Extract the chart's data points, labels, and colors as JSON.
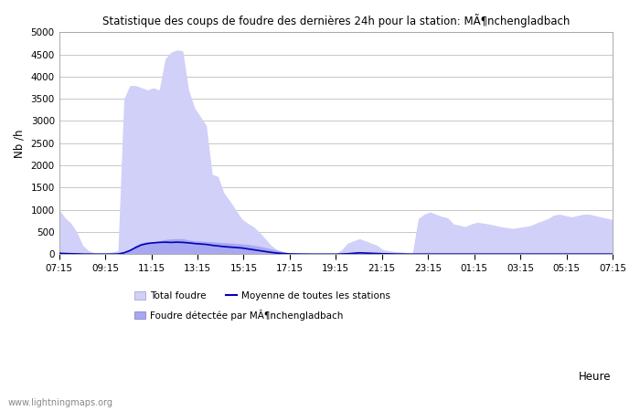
{
  "title": "Statistique des coups de foudre des dernières 24h pour la station: MÃ¶nchengladbach",
  "ylabel": "Nb /h",
  "xlabel": "Heure",
  "ylim": [
    0,
    5000
  ],
  "yticks": [
    0,
    500,
    1000,
    1500,
    2000,
    2500,
    3000,
    3500,
    4000,
    4500,
    5000
  ],
  "xtick_labels": [
    "07:15",
    "09:15",
    "11:15",
    "13:15",
    "15:15",
    "17:15",
    "19:15",
    "21:15",
    "23:15",
    "01:15",
    "03:15",
    "05:15",
    "07:15"
  ],
  "bg_color": "#ffffff",
  "plot_bg_color": "#ffffff",
  "grid_color": "#c8c8c8",
  "fill_total_color": "#d0d0f8",
  "fill_station_color": "#a8a8f0",
  "line_color": "#0000bb",
  "watermark": "www.lightningmaps.org",
  "total_foudre": [
    1000,
    820,
    700,
    500,
    200,
    80,
    30,
    20,
    30,
    50,
    80,
    3500,
    3800,
    3800,
    3750,
    3700,
    3750,
    3700,
    4400,
    4550,
    4600,
    4580,
    3700,
    3300,
    3100,
    2900,
    1800,
    1750,
    1380,
    1200,
    1000,
    800,
    700,
    620,
    500,
    350,
    200,
    100,
    50,
    20,
    10,
    5,
    3,
    2,
    2,
    2,
    2,
    2,
    100,
    250,
    300,
    350,
    300,
    250,
    200,
    100,
    80,
    60,
    50,
    30,
    20,
    800,
    900,
    950,
    900,
    850,
    820,
    680,
    650,
    620,
    680,
    720,
    700,
    680,
    650,
    620,
    600,
    580,
    600,
    620,
    640,
    700,
    750,
    800,
    880,
    900,
    870,
    840,
    870,
    900,
    900,
    870,
    840,
    810,
    780
  ],
  "station_foudre": [
    20,
    15,
    10,
    8,
    3,
    2,
    1,
    1,
    1,
    2,
    5,
    50,
    100,
    200,
    260,
    280,
    280,
    300,
    330,
    345,
    350,
    350,
    320,
    300,
    295,
    285,
    280,
    270,
    260,
    250,
    240,
    230,
    220,
    200,
    180,
    150,
    120,
    90,
    60,
    30,
    15,
    8,
    4,
    2,
    1,
    1,
    1,
    1,
    5,
    20,
    40,
    60,
    50,
    30,
    20,
    10,
    8,
    5,
    4,
    3,
    2,
    5,
    5,
    5,
    5,
    5,
    5,
    5,
    5,
    5,
    5,
    5,
    5,
    5,
    5,
    5,
    5,
    5,
    5,
    5,
    5,
    5,
    5,
    5,
    5,
    5,
    5,
    5,
    5,
    5,
    5,
    5,
    5,
    5,
    5
  ],
  "mean_line": [
    20,
    15,
    10,
    8,
    3,
    2,
    1,
    1,
    1,
    2,
    5,
    30,
    80,
    150,
    210,
    240,
    255,
    265,
    270,
    265,
    270,
    265,
    255,
    240,
    230,
    220,
    200,
    185,
    170,
    160,
    150,
    140,
    120,
    100,
    80,
    60,
    40,
    25,
    15,
    8,
    5,
    3,
    2,
    1,
    1,
    1,
    1,
    1,
    5,
    10,
    20,
    30,
    25,
    20,
    15,
    10,
    8,
    5,
    4,
    3,
    2,
    2,
    2,
    2,
    2,
    2,
    2,
    2,
    2,
    2,
    2,
    2,
    2,
    2,
    2,
    2,
    2,
    2,
    2,
    2,
    2,
    2,
    2,
    2,
    2,
    2,
    2,
    2,
    2,
    2,
    2,
    2,
    2,
    2,
    2
  ],
  "n_ticks": 13,
  "legend_total": "Total foudre",
  "legend_mean": "Moyenne de toutes les stations",
  "legend_station": "Foudre détectée par MÃ¶nchengladbach"
}
